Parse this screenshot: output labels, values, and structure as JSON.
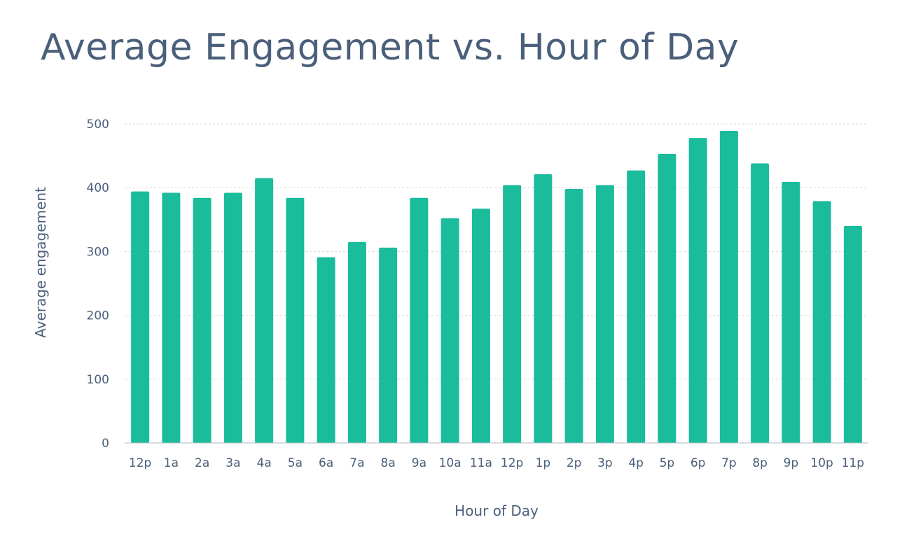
{
  "chart_data": {
    "type": "bar",
    "title": "Average Engagement vs. Hour of Day",
    "xlabel": "Hour of Day",
    "ylabel": "Average engagement",
    "categories": [
      "12p",
      "1a",
      "2a",
      "3a",
      "4a",
      "5a",
      "6a",
      "7a",
      "8a",
      "9a",
      "10a",
      "11a",
      "12p",
      "1p",
      "2p",
      "3p",
      "4p",
      "5p",
      "6p",
      "7p",
      "8p",
      "9p",
      "10p",
      "11p"
    ],
    "values": [
      394,
      392,
      384,
      392,
      415,
      384,
      291,
      315,
      306,
      384,
      352,
      367,
      404,
      421,
      398,
      404,
      427,
      453,
      478,
      489,
      438,
      409,
      379,
      340
    ],
    "ylim": [
      0,
      500
    ],
    "yticks": [
      0,
      100,
      200,
      300,
      400,
      500
    ],
    "grid": true,
    "legend": "none",
    "bar_color": "#1abc9c",
    "text_color": "#4a5f7a",
    "grid_color": "#d5d8dc"
  }
}
